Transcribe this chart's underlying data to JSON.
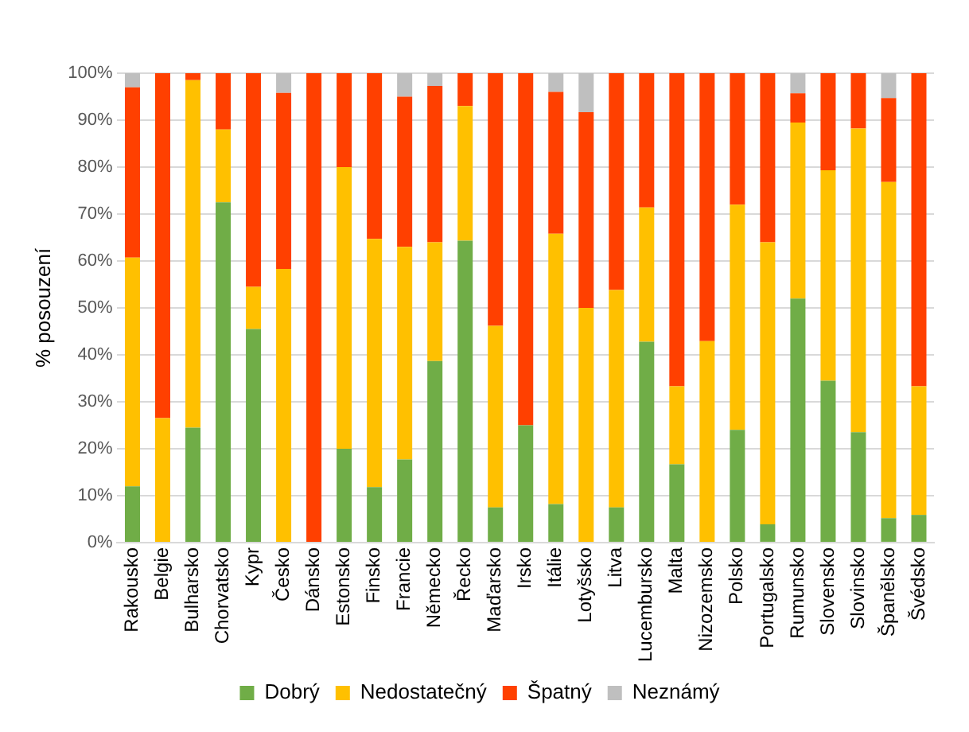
{
  "chart_data": {
    "type": "bar",
    "stacked": true,
    "ylabel": "% posouzení",
    "categories": [
      "Rakousko",
      "Belgie",
      "Bulharsko",
      "Chorvatsko",
      "Kypr",
      "Česko",
      "Dánsko",
      "Estonsko",
      "Finsko",
      "Francie",
      "Německo",
      "Řecko",
      "Maďarsko",
      "Irsko",
      "Itálie",
      "Lotyšsko",
      "Litva",
      "Lucembursko",
      "Malta",
      "Nizozemsko",
      "Polsko",
      "Portugalsko",
      "Rumunsko",
      "Slovensko",
      "Slovinsko",
      "Španělsko",
      "Švédsko"
    ],
    "series": [
      {
        "name": "Dobrý",
        "color": "#70ad47",
        "values": [
          12,
          0,
          24.5,
          72.5,
          45.5,
          0,
          0,
          20,
          11.8,
          17.7,
          38.7,
          64.3,
          7.5,
          25,
          8.2,
          0,
          7.5,
          42.8,
          16.7,
          0,
          24,
          3.9,
          52,
          34.5,
          23.5,
          5.2,
          5.9
        ]
      },
      {
        "name": "Nedostatečný",
        "color": "#ffc000",
        "values": [
          48.7,
          26.5,
          74,
          15.5,
          9,
          58.3,
          0,
          60,
          52.9,
          45.3,
          25.3,
          28.7,
          38.7,
          0,
          57.6,
          50,
          46.3,
          28.6,
          16.6,
          42.9,
          48,
          60.1,
          37.5,
          44.8,
          64.7,
          71.6,
          27.4
        ]
      },
      {
        "name": "Špatný",
        "color": "#ff4000",
        "values": [
          36.3,
          73.5,
          1.5,
          12,
          45.5,
          37.5,
          100,
          20,
          35.3,
          32,
          33.3,
          7,
          53.8,
          75,
          30.2,
          41.7,
          46.2,
          28.6,
          66.7,
          57.1,
          28,
          36,
          6.2,
          20.7,
          11.8,
          17.9,
          66.7
        ]
      },
      {
        "name": "Neznámý",
        "color": "#bfbfbf",
        "values": [
          3,
          0,
          0,
          0,
          0,
          4.2,
          0,
          0,
          0,
          5,
          2.7,
          0,
          0,
          0,
          4,
          8.3,
          0,
          0,
          0,
          0,
          0,
          0,
          4.3,
          0,
          0,
          5.3,
          0
        ]
      }
    ],
    "ylim": [
      0,
      100
    ],
    "yticks": [
      {
        "value": 0,
        "label": "0%"
      },
      {
        "value": 10,
        "label": "10%"
      },
      {
        "value": 20,
        "label": "20%"
      },
      {
        "value": 30,
        "label": "30%"
      },
      {
        "value": 40,
        "label": "40%"
      },
      {
        "value": 50,
        "label": "50%"
      },
      {
        "value": 60,
        "label": "60%"
      },
      {
        "value": 70,
        "label": "70%"
      },
      {
        "value": 80,
        "label": "80%"
      },
      {
        "value": 90,
        "label": "90%"
      },
      {
        "value": 100,
        "label": "100%"
      }
    ],
    "grid": "y",
    "legend": "bottom"
  }
}
